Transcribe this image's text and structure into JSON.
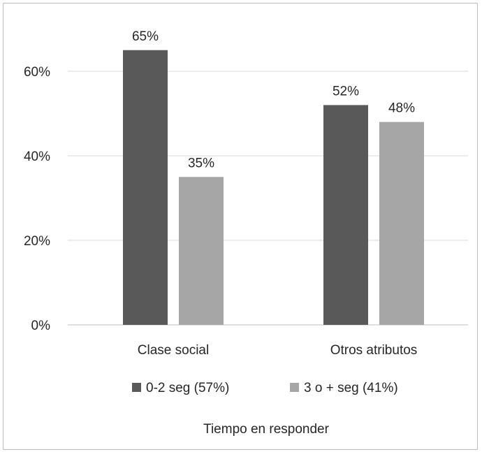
{
  "chart_data": {
    "type": "bar",
    "title": "",
    "categories": [
      "Clase social",
      "Otros atributos"
    ],
    "series": [
      {
        "name": "0-2 seg (57%)",
        "values": [
          65,
          52
        ],
        "labels": [
          "65%",
          "52%"
        ],
        "color": "#595959"
      },
      {
        "name": "3 o + seg (41%)",
        "values": [
          35,
          48
        ],
        "labels": [
          "35%",
          "48%"
        ],
        "color": "#a6a6a6"
      }
    ],
    "xlabel": "Tiempo en responder",
    "ylabel": "",
    "ylim": [
      0,
      60
    ],
    "yticks": [
      {
        "value": 0,
        "label": "0%"
      },
      {
        "value": 20,
        "label": "20%"
      },
      {
        "value": 40,
        "label": "40%"
      },
      {
        "value": 60,
        "label": "60%"
      }
    ],
    "grid": true,
    "gridline_color": "#d9d9d9",
    "legend": "bottom"
  }
}
